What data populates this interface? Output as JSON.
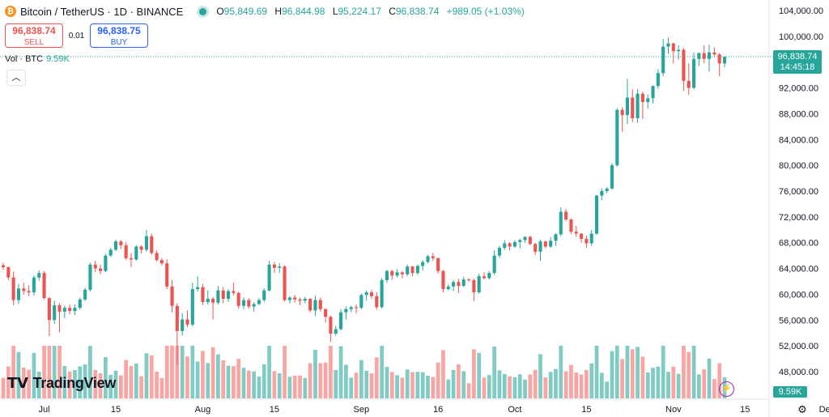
{
  "header": {
    "symbol_title": "Bitcoin / TetherUS · 1D · BINANCE",
    "coin_glyph": "₿",
    "ohlc": {
      "open_label": "O",
      "open": "95,849.69",
      "high_label": "H",
      "high": "96,844.98",
      "low_label": "L",
      "low": "95,224.17",
      "close_label": "C",
      "close": "96,838.74",
      "change": "+989.05 (+1.03%)"
    }
  },
  "trade": {
    "sell_price": "96,838.74",
    "sell_label": "SELL",
    "spread": "0.01",
    "buy_price": "96,838.75",
    "buy_label": "BUY"
  },
  "volume_legend": {
    "label": "Vol · BTC",
    "value": "9.59K"
  },
  "price_tag": {
    "price": "96,838.74",
    "countdown": "14:45:18"
  },
  "volume_tag": "9.59K",
  "branding": {
    "logo_mark": "𝗧𝗩",
    "logo_text": "TradingView"
  },
  "icons": {
    "collapse": "chevron-up-icon",
    "bolt": "lightning-icon",
    "settings": "gear-icon"
  },
  "colors": {
    "up": "#26a69a",
    "down": "#ef5350",
    "up_volume": "#80cbc4",
    "down_volume": "#f8a5a4"
  },
  "chart_data": {
    "type": "candlestick",
    "y_axis_labels": [
      "104,000.00",
      "100,000.00",
      "92,000.00",
      "88,000.00",
      "84,000.00",
      "80,000.00",
      "76,000.00",
      "72,000.00",
      "68,000.00",
      "64,000.00",
      "60,000.00",
      "56,000.00",
      "52,000.00",
      "48,000.00"
    ],
    "y_axis_side": "right",
    "ylim": [
      45000,
      105000
    ],
    "x_axis_labels": [
      {
        "label": "Jul",
        "index": 8
      },
      {
        "label": "15",
        "index": 22
      },
      {
        "label": "Aug",
        "index": 39
      },
      {
        "label": "15",
        "index": 53
      },
      {
        "label": "Sep",
        "index": 70
      },
      {
        "label": "16",
        "index": 85
      },
      {
        "label": "Oct",
        "index": 100
      },
      {
        "label": "15",
        "index": 114
      },
      {
        "label": "Nov",
        "index": 131
      },
      {
        "label": "15",
        "index": 145
      },
      {
        "label": "Dec",
        "index": 161
      }
    ],
    "last_price": 96838.74,
    "candles": [
      [
        64500,
        64900,
        63800,
        64200
      ],
      [
        64200,
        64300,
        62200,
        62600
      ],
      [
        62600,
        63500,
        58300,
        59100
      ],
      [
        59100,
        61600,
        58500,
        60900
      ],
      [
        60900,
        61800,
        59900,
        60500
      ],
      [
        60500,
        61400,
        59700,
        60300
      ],
      [
        60300,
        62900,
        59800,
        62600
      ],
      [
        62600,
        63700,
        62100,
        63300
      ],
      [
        63300,
        63600,
        59200,
        59400
      ],
      [
        59400,
        59600,
        53500,
        56000
      ],
      [
        56000,
        59000,
        55400,
        58300
      ],
      [
        58300,
        58600,
        54100,
        57300
      ],
      [
        57300,
        58200,
        56300,
        57900
      ],
      [
        57900,
        58400,
        56900,
        57400
      ],
      [
        57400,
        58400,
        56800,
        57900
      ],
      [
        57900,
        59500,
        57600,
        59200
      ],
      [
        59200,
        61000,
        58900,
        60700
      ],
      [
        60700,
        64900,
        60400,
        64600
      ],
      [
        64600,
        65200,
        63400,
        64000
      ],
      [
        64000,
        64600,
        63100,
        63600
      ],
      [
        63600,
        66300,
        63400,
        66000
      ],
      [
        66000,
        67200,
        65800,
        66900
      ],
      [
        66900,
        68500,
        66700,
        68200
      ],
      [
        68200,
        68400,
        67000,
        67600
      ],
      [
        67600,
        68100,
        65300,
        65600
      ],
      [
        65600,
        66400,
        64200,
        65400
      ],
      [
        65400,
        67600,
        65200,
        67400
      ],
      [
        67400,
        67600,
        66300,
        66900
      ],
      [
        66900,
        70000,
        66600,
        69000
      ],
      [
        69000,
        69400,
        66100,
        66400
      ],
      [
        66400,
        66800,
        65100,
        65300
      ],
      [
        65300,
        65600,
        64500,
        64800
      ],
      [
        64800,
        65400,
        60800,
        61200
      ],
      [
        61200,
        62200,
        57200,
        58200
      ],
      [
        58200,
        58600,
        49000,
        54300
      ],
      [
        54300,
        57100,
        53600,
        56100
      ],
      [
        56100,
        57500,
        54900,
        55300
      ],
      [
        55300,
        61800,
        55000,
        60800
      ],
      [
        60800,
        62800,
        60400,
        61100
      ],
      [
        61100,
        61600,
        58300,
        58800
      ],
      [
        58800,
        60600,
        58400,
        59300
      ],
      [
        59300,
        59600,
        56100,
        58700
      ],
      [
        58700,
        61300,
        58400,
        60600
      ],
      [
        60600,
        61100,
        58600,
        59300
      ],
      [
        59300,
        60800,
        58800,
        60500
      ],
      [
        60500,
        61800,
        59800,
        60200
      ],
      [
        60200,
        60400,
        57800,
        58200
      ],
      [
        58200,
        59500,
        57700,
        59100
      ],
      [
        59100,
        59400,
        57800,
        58100
      ],
      [
        58100,
        58800,
        57300,
        58500
      ],
      [
        58500,
        59400,
        58300,
        59100
      ],
      [
        59100,
        60900,
        58800,
        60600
      ],
      [
        60600,
        65200,
        60400,
        64600
      ],
      [
        64600,
        65000,
        63300,
        64100
      ],
      [
        64100,
        64800,
        63300,
        64300
      ],
      [
        64300,
        64500,
        58900,
        59100
      ],
      [
        59100,
        59700,
        58600,
        59500
      ],
      [
        59500,
        59900,
        58700,
        59200
      ],
      [
        59200,
        59500,
        58300,
        59000
      ],
      [
        59000,
        59600,
        58600,
        59300
      ],
      [
        59300,
        59400,
        57200,
        57500
      ],
      [
        57500,
        59800,
        56600,
        59100
      ],
      [
        59100,
        59500,
        57300,
        57700
      ],
      [
        57700,
        57800,
        55600,
        56500
      ],
      [
        56500,
        56700,
        52600,
        53900
      ],
      [
        53900,
        55100,
        53600,
        54600
      ],
      [
        54600,
        57700,
        54400,
        57200
      ],
      [
        57200,
        58100,
        56100,
        57700
      ],
      [
        57700,
        58200,
        57200,
        58000
      ],
      [
        58000,
        58400,
        57000,
        57900
      ],
      [
        57900,
        60100,
        57700,
        59900
      ],
      [
        59900,
        60600,
        59000,
        60300
      ],
      [
        60300,
        60700,
        59300,
        59700
      ],
      [
        59700,
        60300,
        57600,
        58000
      ],
      [
        58000,
        62500,
        57800,
        62200
      ],
      [
        62200,
        63800,
        61800,
        63600
      ],
      [
        63600,
        63800,
        62200,
        62900
      ],
      [
        62900,
        63900,
        62600,
        63400
      ],
      [
        63400,
        63600,
        62500,
        63100
      ],
      [
        63100,
        64600,
        62800,
        64300
      ],
      [
        64300,
        64400,
        62800,
        63300
      ],
      [
        63300,
        64600,
        63000,
        64400
      ],
      [
        64400,
        65300,
        63700,
        65000
      ],
      [
        65000,
        66100,
        64800,
        65900
      ],
      [
        65900,
        66400,
        65200,
        65600
      ],
      [
        65600,
        65700,
        63200,
        63600
      ],
      [
        63600,
        63800,
        60300,
        60800
      ],
      [
        60800,
        61500,
        60600,
        61200
      ],
      [
        61200,
        62200,
        60500,
        61900
      ],
      [
        61900,
        62400,
        60200,
        61300
      ],
      [
        61300,
        62700,
        61100,
        62300
      ],
      [
        62300,
        62500,
        61900,
        62200
      ],
      [
        62200,
        62400,
        58900,
        60300
      ],
      [
        60300,
        63200,
        60100,
        62800
      ],
      [
        62800,
        63400,
        62300,
        62500
      ],
      [
        62500,
        63600,
        62300,
        63300
      ],
      [
        63300,
        66800,
        63000,
        66000
      ],
      [
        66000,
        67500,
        65700,
        67200
      ],
      [
        67200,
        68400,
        66900,
        67900
      ],
      [
        67900,
        68100,
        66800,
        67400
      ],
      [
        67400,
        68400,
        67200,
        68100
      ],
      [
        68100,
        68600,
        67100,
        68400
      ],
      [
        68400,
        69000,
        68000,
        68900
      ],
      [
        68900,
        69100,
        67600,
        67800
      ],
      [
        67800,
        68000,
        66100,
        66600
      ],
      [
        66600,
        68500,
        65200,
        68200
      ],
      [
        68200,
        68300,
        67100,
        67400
      ],
      [
        67400,
        68900,
        67200,
        68300
      ],
      [
        68300,
        69500,
        67500,
        69300
      ],
      [
        69300,
        73500,
        69000,
        72800
      ],
      [
        72800,
        73200,
        71300,
        71600
      ],
      [
        71600,
        71800,
        69300,
        69700
      ],
      [
        69700,
        70600,
        68900,
        69400
      ],
      [
        69400,
        69500,
        68000,
        68600
      ],
      [
        68600,
        69100,
        67200,
        67900
      ],
      [
        67900,
        70000,
        67500,
        69400
      ],
      [
        69400,
        75400,
        69200,
        75300
      ],
      [
        75300,
        76400,
        74600,
        76000
      ],
      [
        76000,
        76600,
        75700,
        76400
      ],
      [
        76400,
        80300,
        76200,
        80000
      ],
      [
        80000,
        88900,
        79800,
        88600
      ],
      [
        88600,
        89000,
        85200,
        87800
      ],
      [
        87800,
        93400,
        86400,
        90500
      ],
      [
        90500,
        91800,
        86700,
        87300
      ],
      [
        87300,
        91800,
        86600,
        91100
      ],
      [
        91100,
        91400,
        87200,
        89800
      ],
      [
        89800,
        91000,
        88800,
        90400
      ],
      [
        90400,
        92400,
        89600,
        92300
      ],
      [
        92300,
        94900,
        91900,
        94300
      ],
      [
        94300,
        99600,
        93800,
        98400
      ],
      [
        98400,
        99800,
        97300,
        98900
      ],
      [
        98900,
        99000,
        95800,
        97700
      ],
      [
        97700,
        98600,
        96400,
        97900
      ],
      [
        97900,
        98200,
        91500,
        93100
      ],
      [
        93100,
        95800,
        90900,
        92000
      ],
      [
        92000,
        97500,
        91800,
        96500
      ],
      [
        96500,
        97500,
        95400,
        97400
      ],
      [
        97400,
        98600,
        95800,
        96500
      ],
      [
        96500,
        98700,
        94500,
        97500
      ],
      [
        97500,
        98300,
        96800,
        97200
      ],
      [
        97200,
        97400,
        93800,
        95800
      ],
      [
        95800,
        96900,
        95200,
        96838.74
      ]
    ],
    "volume_max": 105000,
    "volume_last": "9.59K"
  }
}
